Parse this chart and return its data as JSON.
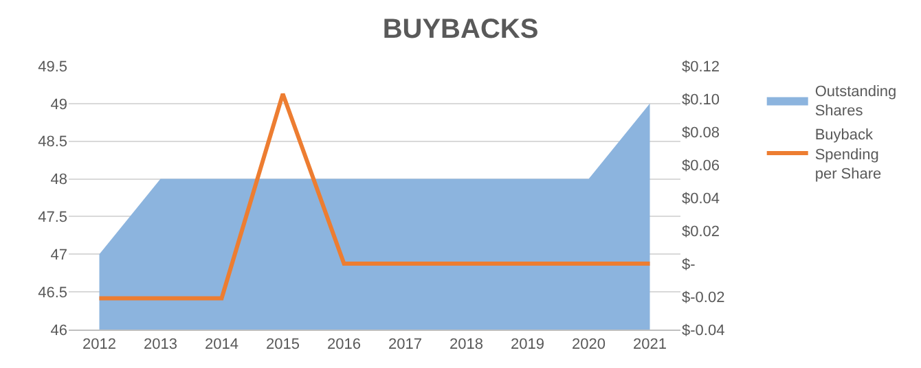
{
  "chart_data": {
    "type": "area",
    "title": "BUYBACKS",
    "categories": [
      "2012",
      "2013",
      "2014",
      "2015",
      "2016",
      "2017",
      "2018",
      "2019",
      "2020",
      "2021"
    ],
    "series": [
      {
        "name": "Outstanding Shares",
        "color": "#8cb4de",
        "values": [
          47,
          48,
          48,
          48,
          48,
          48,
          48,
          48,
          48,
          49
        ]
      },
      {
        "name": "Buyback Spending per Share",
        "type": "line",
        "axis": "y2",
        "color": "#ed7d31",
        "values": [
          -0.021,
          -0.021,
          -0.021,
          0.103,
          0,
          0,
          0,
          0,
          0,
          0
        ]
      }
    ],
    "ylim": [
      46,
      49.5
    ],
    "yticks": [
      46,
      46.5,
      47,
      47.5,
      48,
      48.5,
      49,
      49.5
    ],
    "y2lim": [
      -0.04,
      0.12
    ],
    "y2ticks": [
      {
        "value": -0.04,
        "label": "$-0.04"
      },
      {
        "value": -0.02,
        "label": "$-0.02"
      },
      {
        "value": 0,
        "label": "$-"
      },
      {
        "value": 0.02,
        "label": "$0.02"
      },
      {
        "value": 0.04,
        "label": "$0.04"
      },
      {
        "value": 0.06,
        "label": "$0.06"
      },
      {
        "value": 0.08,
        "label": "$0.08"
      },
      {
        "value": 0.1,
        "label": "$0.10"
      },
      {
        "value": 0.12,
        "label": "$0.12"
      }
    ],
    "grid": "y",
    "legend": "right",
    "marker": "none",
    "line_style": "solid"
  }
}
